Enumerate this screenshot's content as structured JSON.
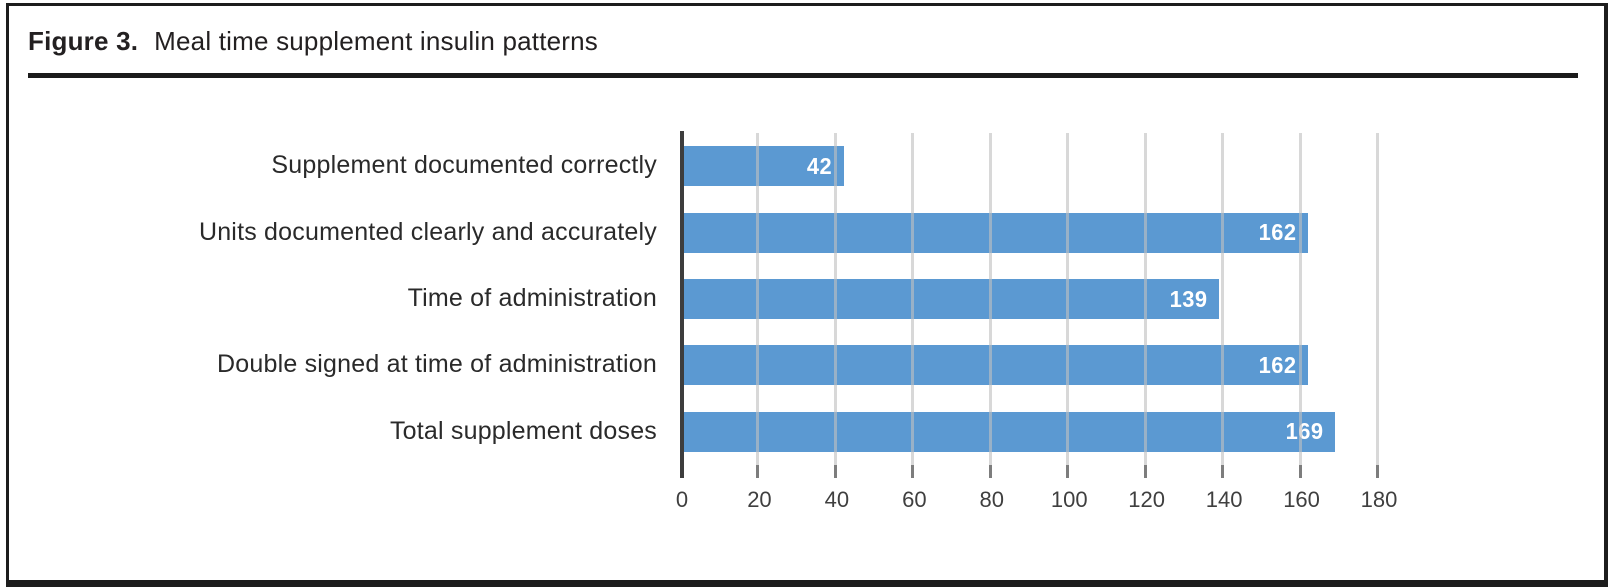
{
  "figure": {
    "label": "Figure 3.",
    "title": "Meal time supplement insulin patterns"
  },
  "chart_data": {
    "type": "bar",
    "orientation": "horizontal",
    "title": "Figure 3. Meal time supplement insulin patterns",
    "categories": [
      "Supplement documented correctly",
      "Units documented clearly and accurately",
      "Time of administration",
      "Double signed at time of administration",
      "Total supplement doses"
    ],
    "values": [
      42,
      162,
      139,
      162,
      169
    ],
    "value_labels": [
      "42",
      "162",
      "139",
      "162",
      "169"
    ],
    "xlabel": "",
    "ylabel": "",
    "xlim": [
      0,
      180
    ],
    "x_ticks": [
      0,
      20,
      40,
      60,
      80,
      100,
      120,
      140,
      160,
      180
    ],
    "grid": "vertical-gridlines-on",
    "legend_position": "none"
  },
  "colors": {
    "bar": "#5B99D2",
    "value_label": "#FFFFFF",
    "gridline": "#D2D2D2",
    "axis_line": "#3D3D3D",
    "tick": "#7D7D7D",
    "tick_label": "#3F3F3F",
    "category_label": "#2A2A2A",
    "title_text": "#232021",
    "frame_border": "#1D1D1D"
  }
}
